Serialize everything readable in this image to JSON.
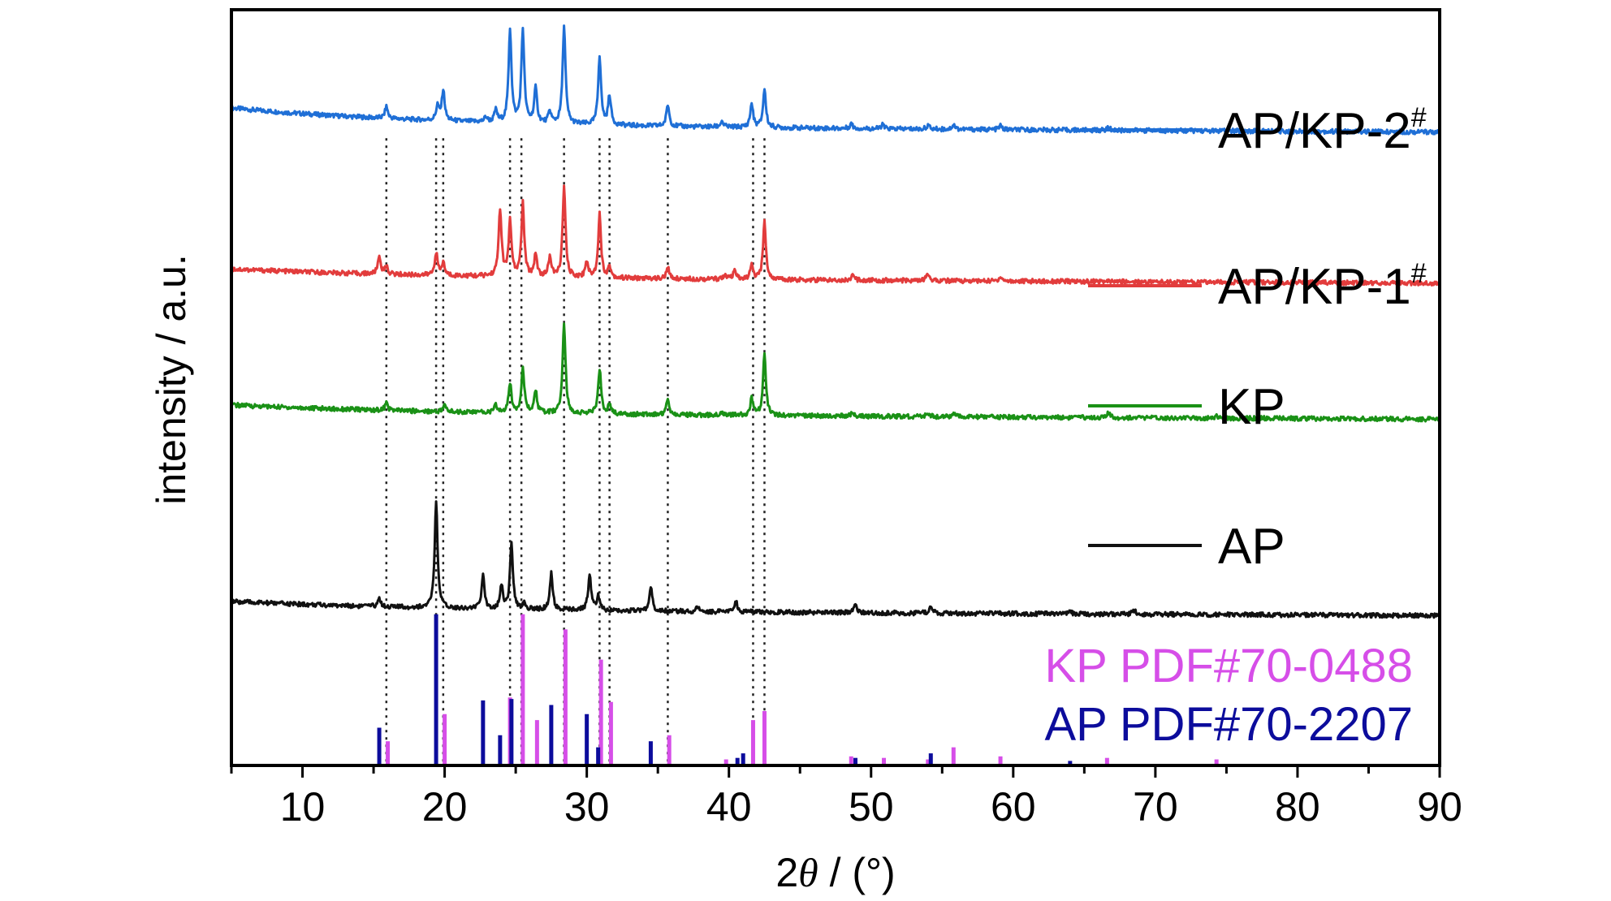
{
  "chart_data": {
    "type": "line",
    "title": "",
    "xlabel": "2θ / (°)",
    "ylabel": "intensity / a.u.",
    "xlim": [
      5,
      90
    ],
    "xticks": [
      10,
      20,
      30,
      40,
      50,
      60,
      70,
      80,
      90
    ],
    "grid": false,
    "legend_position": "right",
    "series": [
      {
        "name": "AP/KP-2",
        "name_superscript": "#",
        "color": "#1f6fd6",
        "baseline": 0.84,
        "peaks": [
          [
            15.9,
            0.12
          ],
          [
            19.5,
            0.15
          ],
          [
            19.9,
            0.31
          ],
          [
            22.9,
            0.05
          ],
          [
            23.6,
            0.12
          ],
          [
            24.6,
            0.95
          ],
          [
            25.5,
            0.95
          ],
          [
            26.4,
            0.35
          ],
          [
            27.4,
            0.12
          ],
          [
            28.4,
            1.0
          ],
          [
            30.9,
            0.7
          ],
          [
            31.6,
            0.3
          ],
          [
            35.7,
            0.22
          ],
          [
            39.5,
            0.06
          ],
          [
            41.6,
            0.24
          ],
          [
            42.5,
            0.39
          ],
          [
            48.6,
            0.05
          ],
          [
            50.8,
            0.04
          ],
          [
            54.0,
            0.04
          ],
          [
            55.8,
            0.05
          ],
          [
            59.1,
            0.04
          ],
          [
            66.7,
            0.03
          ]
        ]
      },
      {
        "name": "AP/KP-1",
        "name_superscript": "#",
        "color": "#e23c3c",
        "baseline": 0.6,
        "peaks": [
          [
            15.4,
            0.2
          ],
          [
            15.9,
            0.08
          ],
          [
            19.4,
            0.25
          ],
          [
            19.9,
            0.14
          ],
          [
            23.9,
            0.74
          ],
          [
            24.6,
            0.6
          ],
          [
            25.5,
            0.8
          ],
          [
            26.4,
            0.25
          ],
          [
            27.4,
            0.22
          ],
          [
            28.4,
            1.0
          ],
          [
            30.0,
            0.18
          ],
          [
            30.9,
            0.7
          ],
          [
            31.6,
            0.12
          ],
          [
            35.7,
            0.12
          ],
          [
            39.7,
            0.05
          ],
          [
            40.4,
            0.09
          ],
          [
            41.6,
            0.15
          ],
          [
            42.5,
            0.64
          ],
          [
            48.7,
            0.05
          ],
          [
            54.0,
            0.08
          ],
          [
            59.1,
            0.05
          ]
        ]
      },
      {
        "name": "KP",
        "color": "#1a9116",
        "baseline": 0.4,
        "peaks": [
          [
            15.9,
            0.08
          ],
          [
            20.0,
            0.07
          ],
          [
            23.6,
            0.08
          ],
          [
            24.6,
            0.32
          ],
          [
            25.5,
            0.51
          ],
          [
            26.4,
            0.24
          ],
          [
            28.4,
            1.0
          ],
          [
            30.9,
            0.5
          ],
          [
            31.6,
            0.1
          ],
          [
            35.7,
            0.18
          ],
          [
            39.5,
            0.04
          ],
          [
            41.6,
            0.18
          ],
          [
            42.5,
            0.68
          ],
          [
            48.7,
            0.05
          ],
          [
            54.0,
            0.04
          ],
          [
            55.8,
            0.04
          ],
          [
            66.7,
            0.05
          ],
          [
            74.3,
            0.03
          ]
        ]
      },
      {
        "name": "AP",
        "color": "#111111",
        "baseline": 0.18,
        "peaks": [
          [
            15.4,
            0.08
          ],
          [
            19.4,
            1.0
          ],
          [
            22.7,
            0.31
          ],
          [
            24.0,
            0.22
          ],
          [
            24.7,
            0.62
          ],
          [
            25.6,
            0.06
          ],
          [
            27.5,
            0.34
          ],
          [
            30.2,
            0.35
          ],
          [
            30.8,
            0.13
          ],
          [
            34.5,
            0.24
          ],
          [
            37.8,
            0.04
          ],
          [
            40.5,
            0.1
          ],
          [
            48.9,
            0.07
          ],
          [
            54.2,
            0.08
          ],
          [
            64.0,
            0.02
          ],
          [
            68.5,
            0.04
          ]
        ]
      }
    ],
    "reference_patterns": [
      {
        "name": "KP PDF#70-0488",
        "color": "#d64ee8",
        "lines": [
          [
            16.0,
            0.16
          ],
          [
            20.0,
            0.34
          ],
          [
            24.6,
            0.45
          ],
          [
            25.5,
            1.0
          ],
          [
            26.5,
            0.3
          ],
          [
            28.5,
            0.9
          ],
          [
            31.0,
            0.7
          ],
          [
            31.7,
            0.42
          ],
          [
            35.8,
            0.2
          ],
          [
            39.8,
            0.04
          ],
          [
            41.7,
            0.3
          ],
          [
            42.5,
            0.36
          ],
          [
            48.6,
            0.06
          ],
          [
            50.9,
            0.05
          ],
          [
            54.0,
            0.04
          ],
          [
            55.8,
            0.12
          ],
          [
            59.1,
            0.06
          ],
          [
            66.6,
            0.05
          ],
          [
            74.3,
            0.04
          ]
        ]
      },
      {
        "name": "AP PDF#70-2207",
        "color": "#0c0c9c",
        "lines": [
          [
            15.4,
            0.25
          ],
          [
            19.4,
            1.0
          ],
          [
            22.7,
            0.43
          ],
          [
            23.9,
            0.2
          ],
          [
            24.7,
            0.44
          ],
          [
            27.5,
            0.4
          ],
          [
            30.0,
            0.34
          ],
          [
            30.8,
            0.12
          ],
          [
            34.5,
            0.16
          ],
          [
            40.6,
            0.05
          ],
          [
            41.0,
            0.08
          ],
          [
            48.9,
            0.05
          ],
          [
            54.2,
            0.08
          ],
          [
            64.0,
            0.03
          ]
        ]
      }
    ],
    "guide_lines_x": [
      15.9,
      19.4,
      19.9,
      24.6,
      25.4,
      28.4,
      30.9,
      31.6,
      35.7,
      41.7,
      42.5
    ]
  }
}
